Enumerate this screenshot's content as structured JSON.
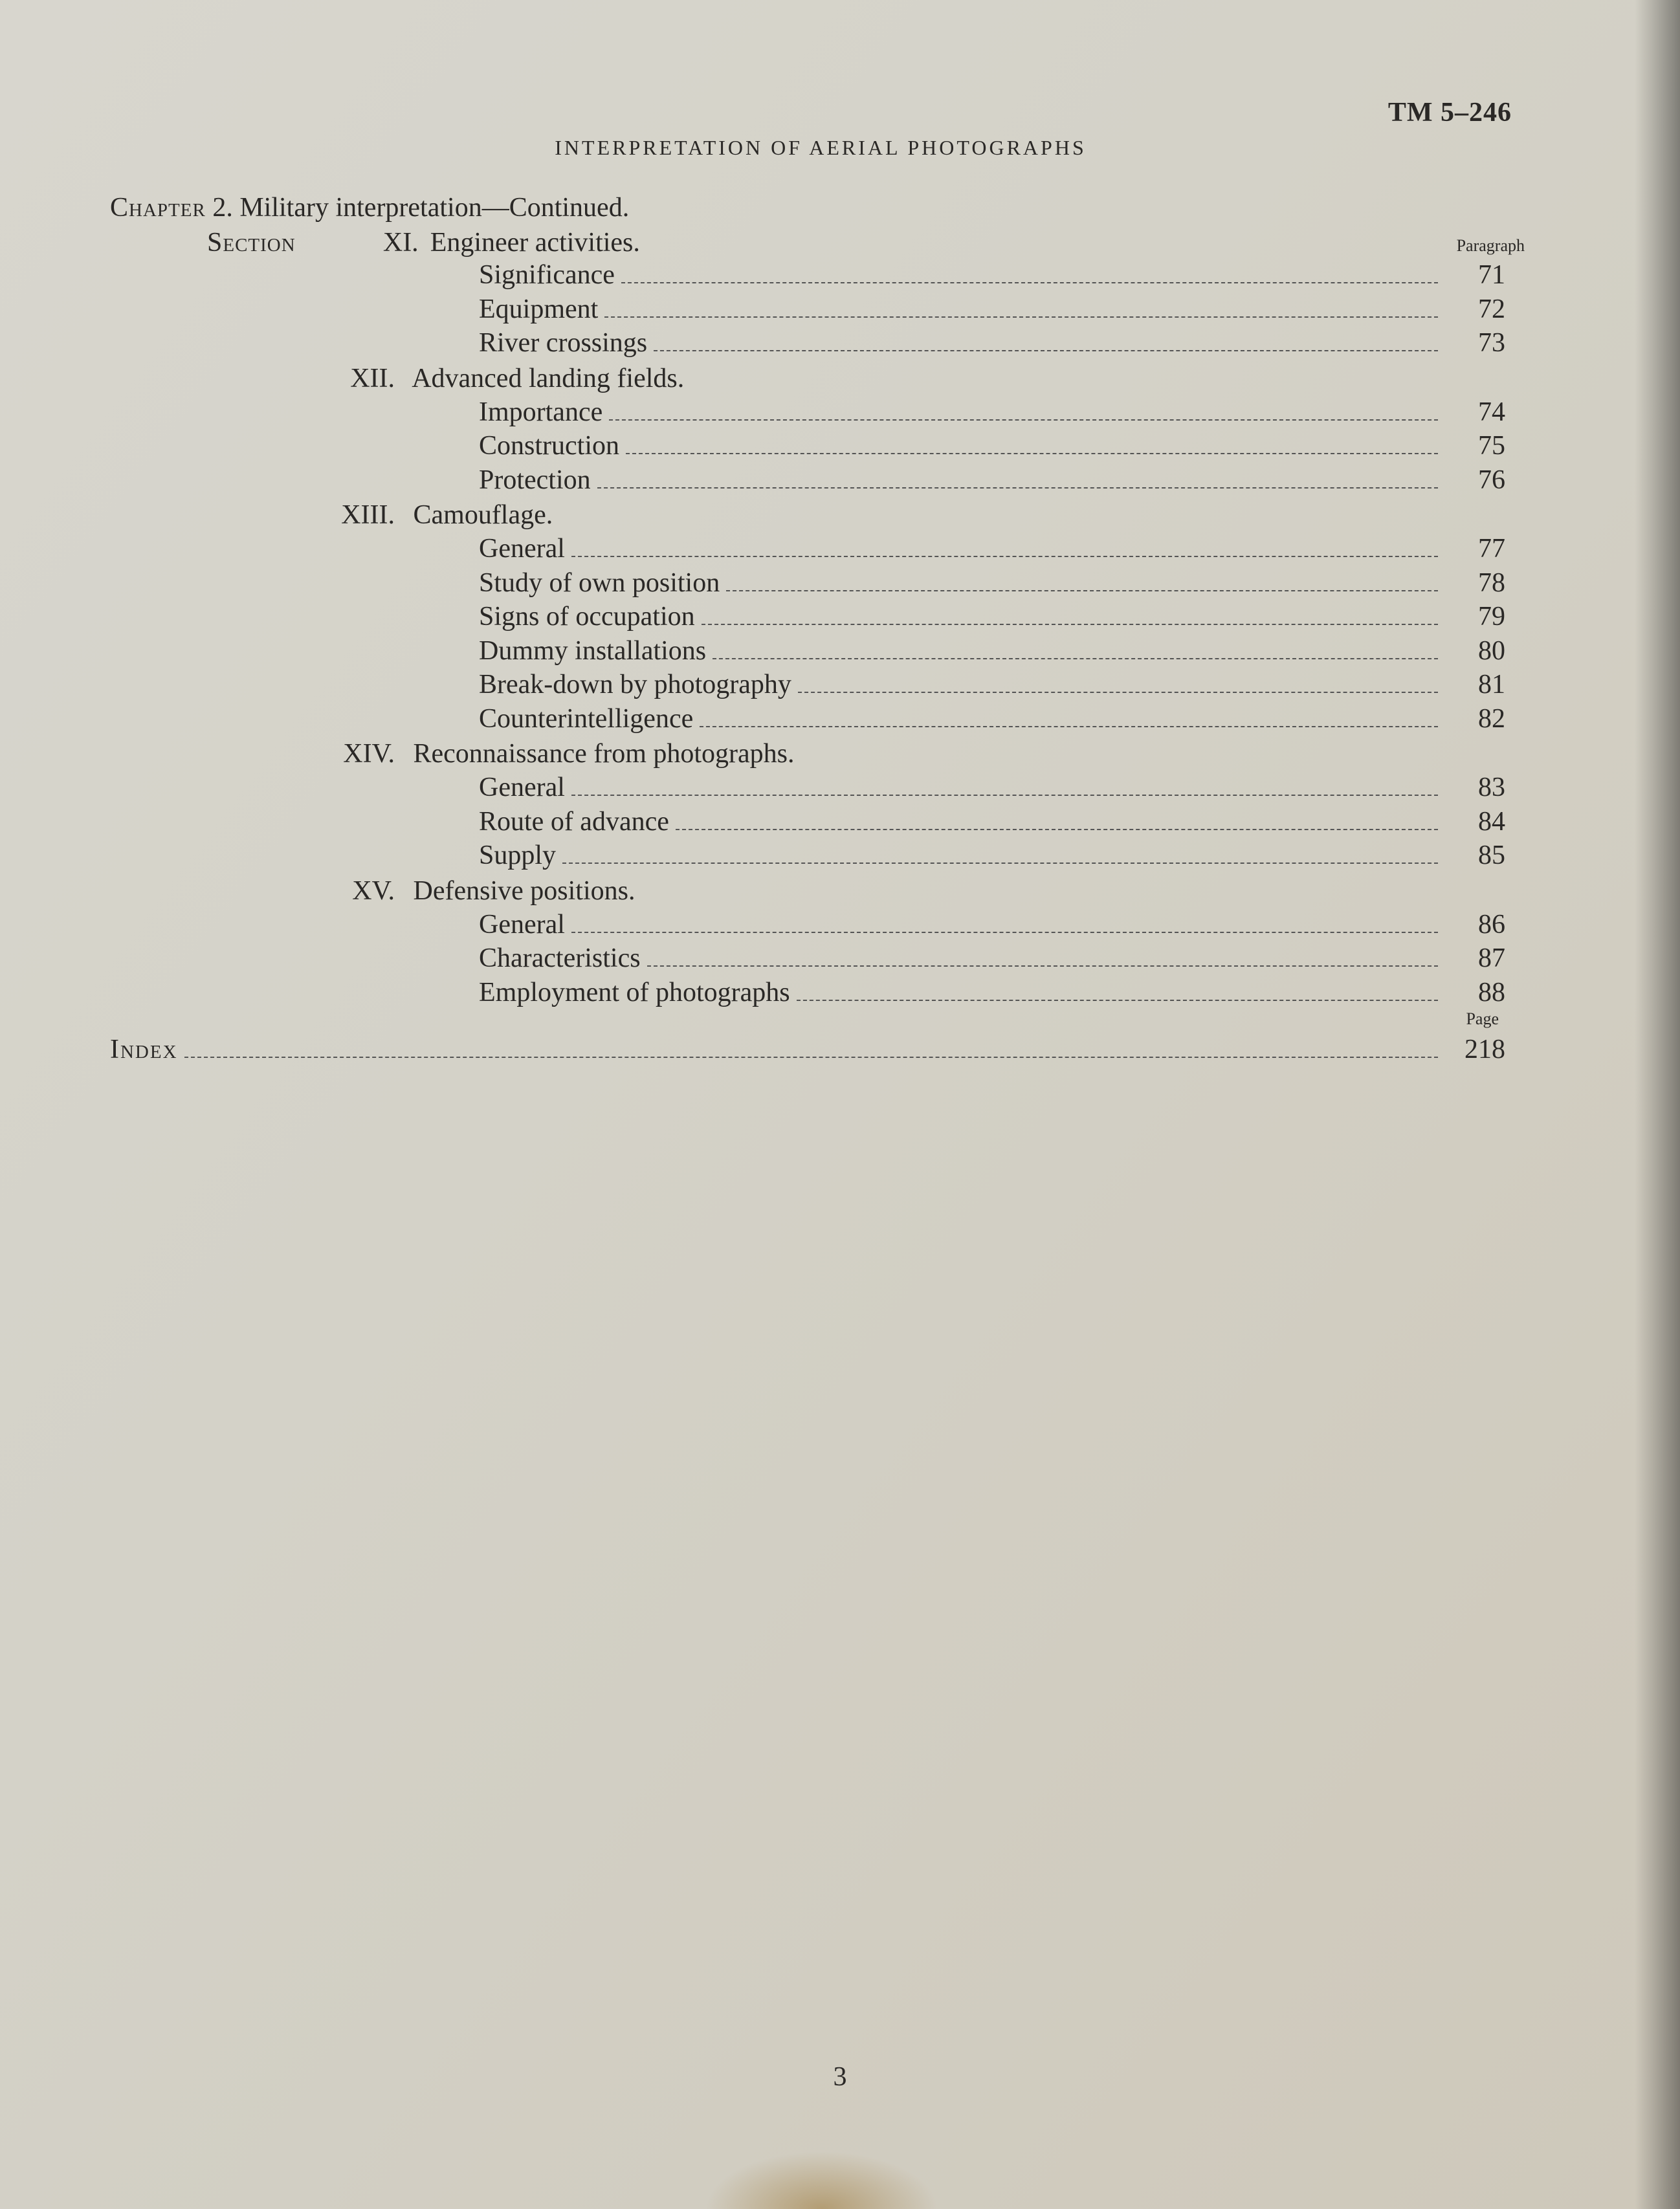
{
  "document_id": "TM 5–246",
  "running_title": "INTERPRETATION OF AERIAL PHOTOGRAPHS",
  "chapter": {
    "label": "Chapter",
    "number": "2.",
    "title": "Military interpretation—Continued."
  },
  "section_label": "Section",
  "paragraph_col": "Paragraph",
  "page_col": "Page",
  "sections": [
    {
      "roman": "XI.",
      "title": "Engineer activities.",
      "entries": [
        {
          "label": "Significance",
          "num": "71"
        },
        {
          "label": "Equipment",
          "num": "72"
        },
        {
          "label": "River crossings",
          "num": "73"
        }
      ]
    },
    {
      "roman": "XII.",
      "title": "Advanced landing fields.",
      "entries": [
        {
          "label": "Importance",
          "num": "74"
        },
        {
          "label": "Construction",
          "num": "75"
        },
        {
          "label": "Protection",
          "num": "76"
        }
      ]
    },
    {
      "roman": "XIII.",
      "title": "Camouflage.",
      "entries": [
        {
          "label": "General",
          "num": "77"
        },
        {
          "label": "Study of own position",
          "num": "78"
        },
        {
          "label": "Signs of occupation",
          "num": "79"
        },
        {
          "label": "Dummy installations",
          "num": "80"
        },
        {
          "label": "Break-down by photography",
          "num": "81"
        },
        {
          "label": "Counterintelligence",
          "num": "82"
        }
      ]
    },
    {
      "roman": "XIV.",
      "title": "Reconnaissance from photographs.",
      "entries": [
        {
          "label": "General",
          "num": "83"
        },
        {
          "label": "Route of advance",
          "num": "84"
        },
        {
          "label": "Supply",
          "num": "85"
        }
      ]
    },
    {
      "roman": "XV.",
      "title": "Defensive positions.",
      "entries": [
        {
          "label": "General",
          "num": "86"
        },
        {
          "label": "Characteristics",
          "num": "87"
        },
        {
          "label": "Employment of photographs",
          "num": "88"
        }
      ]
    }
  ],
  "index": {
    "label": "Index",
    "page": "218"
  },
  "page_number": "3",
  "colors": {
    "text": "#2a2826",
    "paper_top": "#d8d6ce",
    "paper_bottom": "#cec8ba",
    "leader": "#555555"
  },
  "typography": {
    "body_pt": 42,
    "small_label_pt": 26,
    "running_title_pt": 32,
    "font_family": "Century Schoolbook, Georgia, serif"
  }
}
